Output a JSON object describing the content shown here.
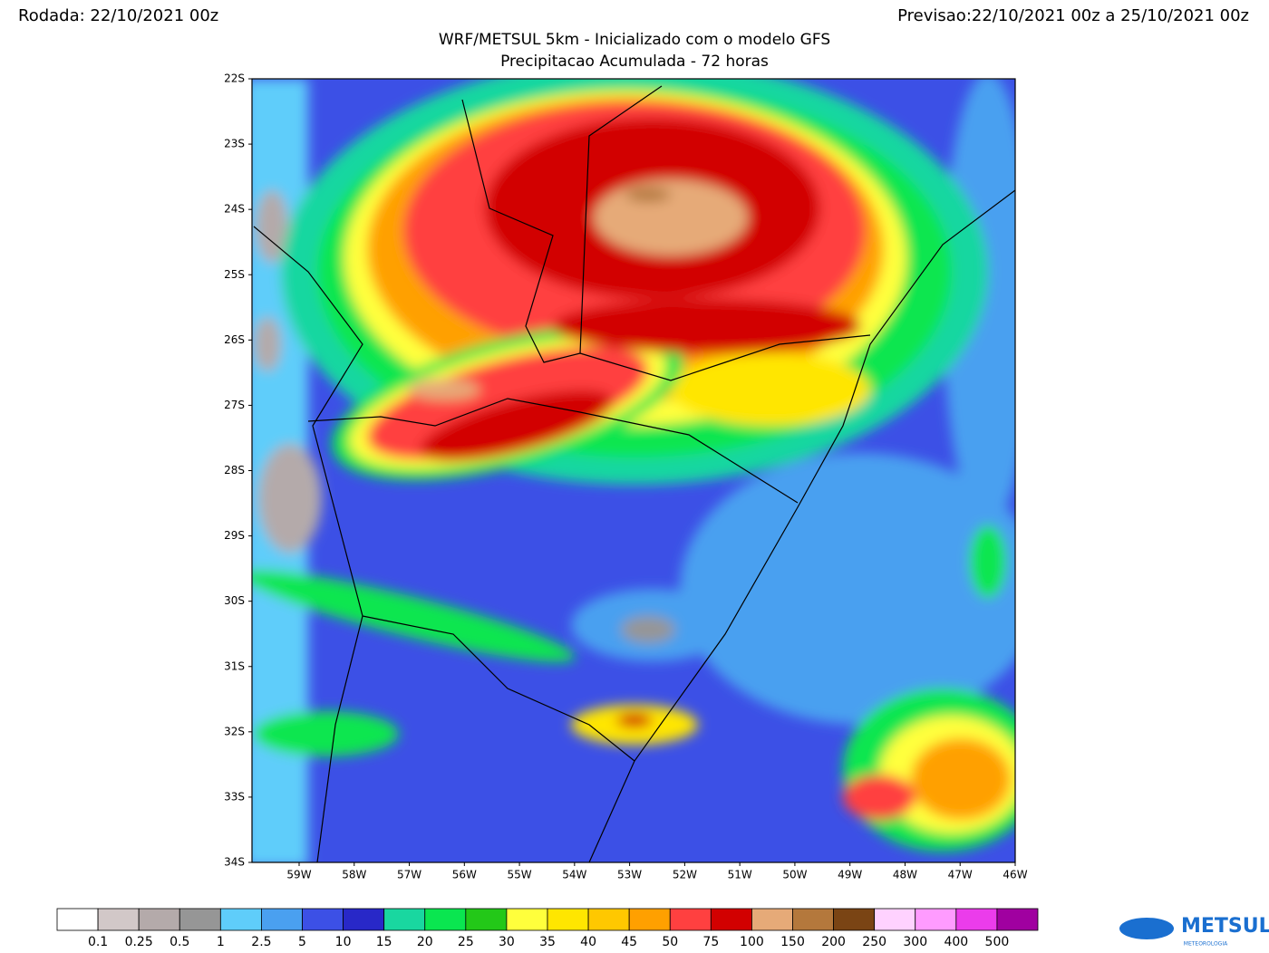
{
  "header": {
    "left": "Rodada: 22/10/2021 00z",
    "right": "Previsao:22/10/2021 00z a 25/10/2021 00z"
  },
  "title": "WRF/METSUL 5km - Inicializado com o modelo GFS",
  "subtitle": "Precipitacao Acumulada - 72 horas",
  "map": {
    "lat_labels": [
      "22S",
      "23S",
      "24S",
      "25S",
      "26S",
      "27S",
      "28S",
      "29S",
      "30S",
      "31S",
      "32S",
      "33S",
      "34S"
    ],
    "lon_labels": [
      "59W",
      "58W",
      "57W",
      "56W",
      "55W",
      "54W",
      "53W",
      "52W",
      "51W",
      "50W",
      "49W",
      "48W",
      "47W",
      "46W"
    ]
  },
  "colorbar": {
    "colors": [
      "#ffffff",
      "#d2c8c8",
      "#b4aaaa",
      "#969696",
      "#5fcdfa",
      "#4aa0f0",
      "#3c50e6",
      "#2828c8",
      "#19d7a0",
      "#0ae650",
      "#23c818",
      "#ffff3c",
      "#ffe600",
      "#ffc800",
      "#ffa000",
      "#ff4040",
      "#d20000",
      "#e6aa78",
      "#b4783c",
      "#7a4414",
      "#ffd2ff",
      "#ff9bff",
      "#eb3ceb",
      "#a000a0"
    ],
    "labels": [
      "0.1",
      "0.25",
      "0.5",
      "1",
      "2.5",
      "5",
      "10",
      "15",
      "20",
      "25",
      "30",
      "35",
      "40",
      "45",
      "50",
      "75",
      "100",
      "150",
      "200",
      "250",
      "300",
      "400",
      "500"
    ]
  },
  "logo": {
    "text": "METSUL",
    "subtext": "METEOROLOGIA"
  }
}
